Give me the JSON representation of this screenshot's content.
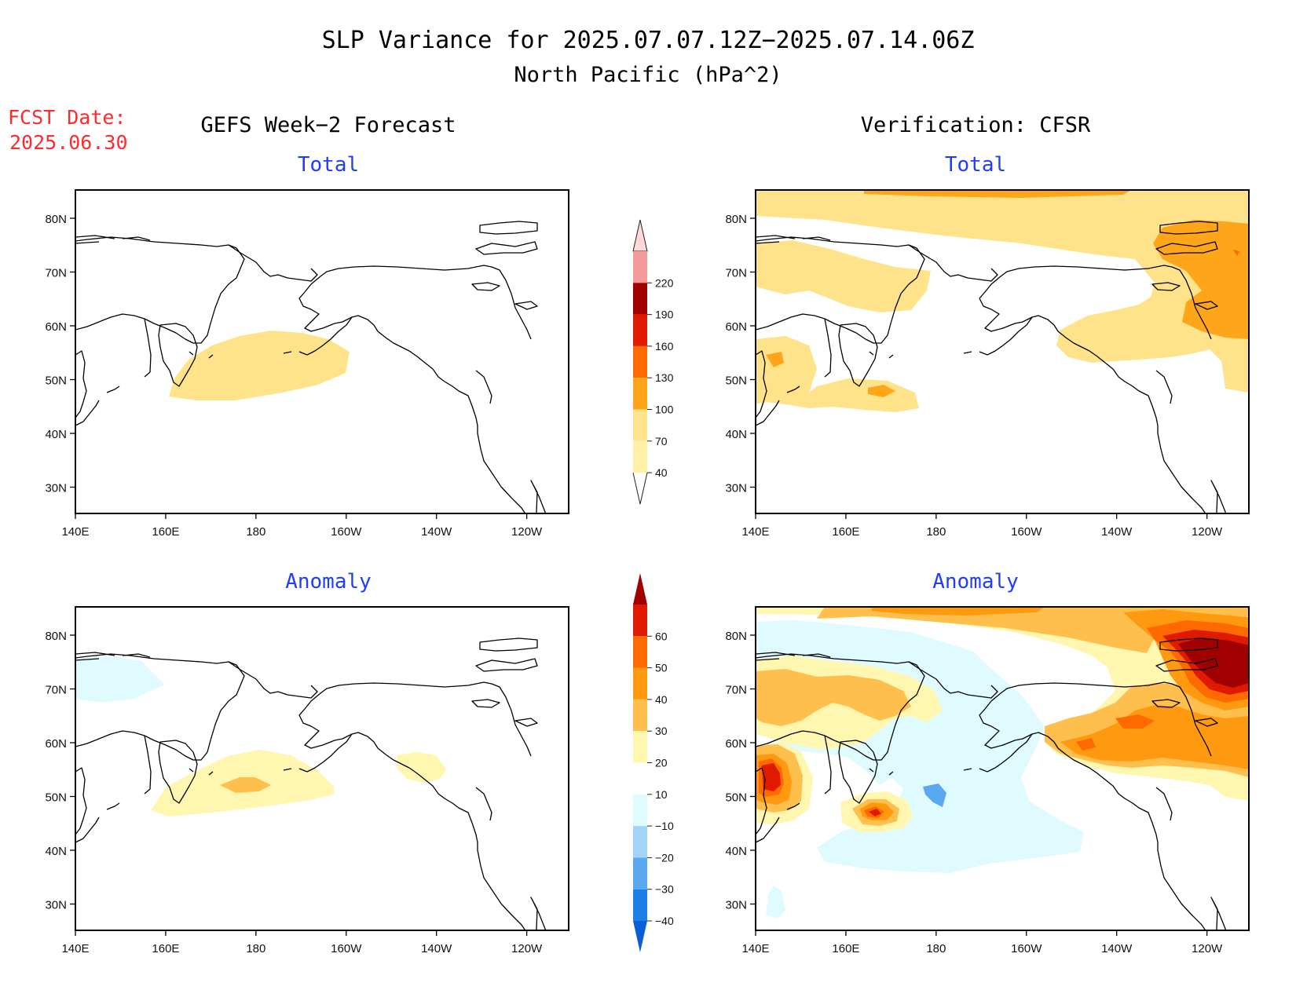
{
  "title": "SLP Variance for 2025.07.07.12Z−2025.07.14.06Z",
  "subtitle": "North Pacific (hPa^2)",
  "fcst_date_label": "FCST Date:",
  "fcst_date_value": "2025.06.30",
  "columns": [
    {
      "id": "gefs",
      "label": "GEFS Week−2 Forecast"
    },
    {
      "id": "cfsr",
      "label": "Verification: CFSR"
    }
  ],
  "panel_titles": {
    "total": "Total",
    "anomaly": "Anomaly"
  },
  "x_ticks": [
    "140E",
    "160E",
    "180",
    "160W",
    "140W",
    "120W"
  ],
  "y_ticks": [
    "80N",
    "70N",
    "60N",
    "50N",
    "40N",
    "30N"
  ],
  "chart_data": [
    {
      "type": "heatmap",
      "name": "total-variance-colorbar",
      "levels": [
        40,
        70,
        100,
        130,
        160,
        190,
        220
      ],
      "level_labels": [
        "40",
        "70",
        "100",
        "130",
        "160",
        "190",
        "220"
      ],
      "colors": [
        "#fff0a8",
        "#ffe38a",
        "#ffa51a",
        "#ff6a00",
        "#e01a00",
        "#a00000",
        "#f49a9a",
        "#ffd8d8"
      ]
    },
    {
      "type": "heatmap",
      "name": "anomaly-colorbar",
      "levels": [
        -40,
        -30,
        -20,
        -10,
        10,
        20,
        30,
        40,
        50,
        60
      ],
      "level_labels": [
        "−40",
        "−30",
        "−20",
        "−10",
        "10",
        "20",
        "30",
        "40",
        "50",
        "60"
      ],
      "colors": [
        "#0a5fd8",
        "#1e7ee8",
        "#5aa8f0",
        "#a3d4f7",
        "#e0fbff",
        "#ffffff",
        "#fff6b0",
        "#ffbf4d",
        "#ff9a10",
        "#ff6a00",
        "#e01a00",
        "#a00000"
      ]
    }
  ],
  "colors": {
    "title_red": "#ff2a2a",
    "panel_title_blue": "#1f3cff"
  }
}
